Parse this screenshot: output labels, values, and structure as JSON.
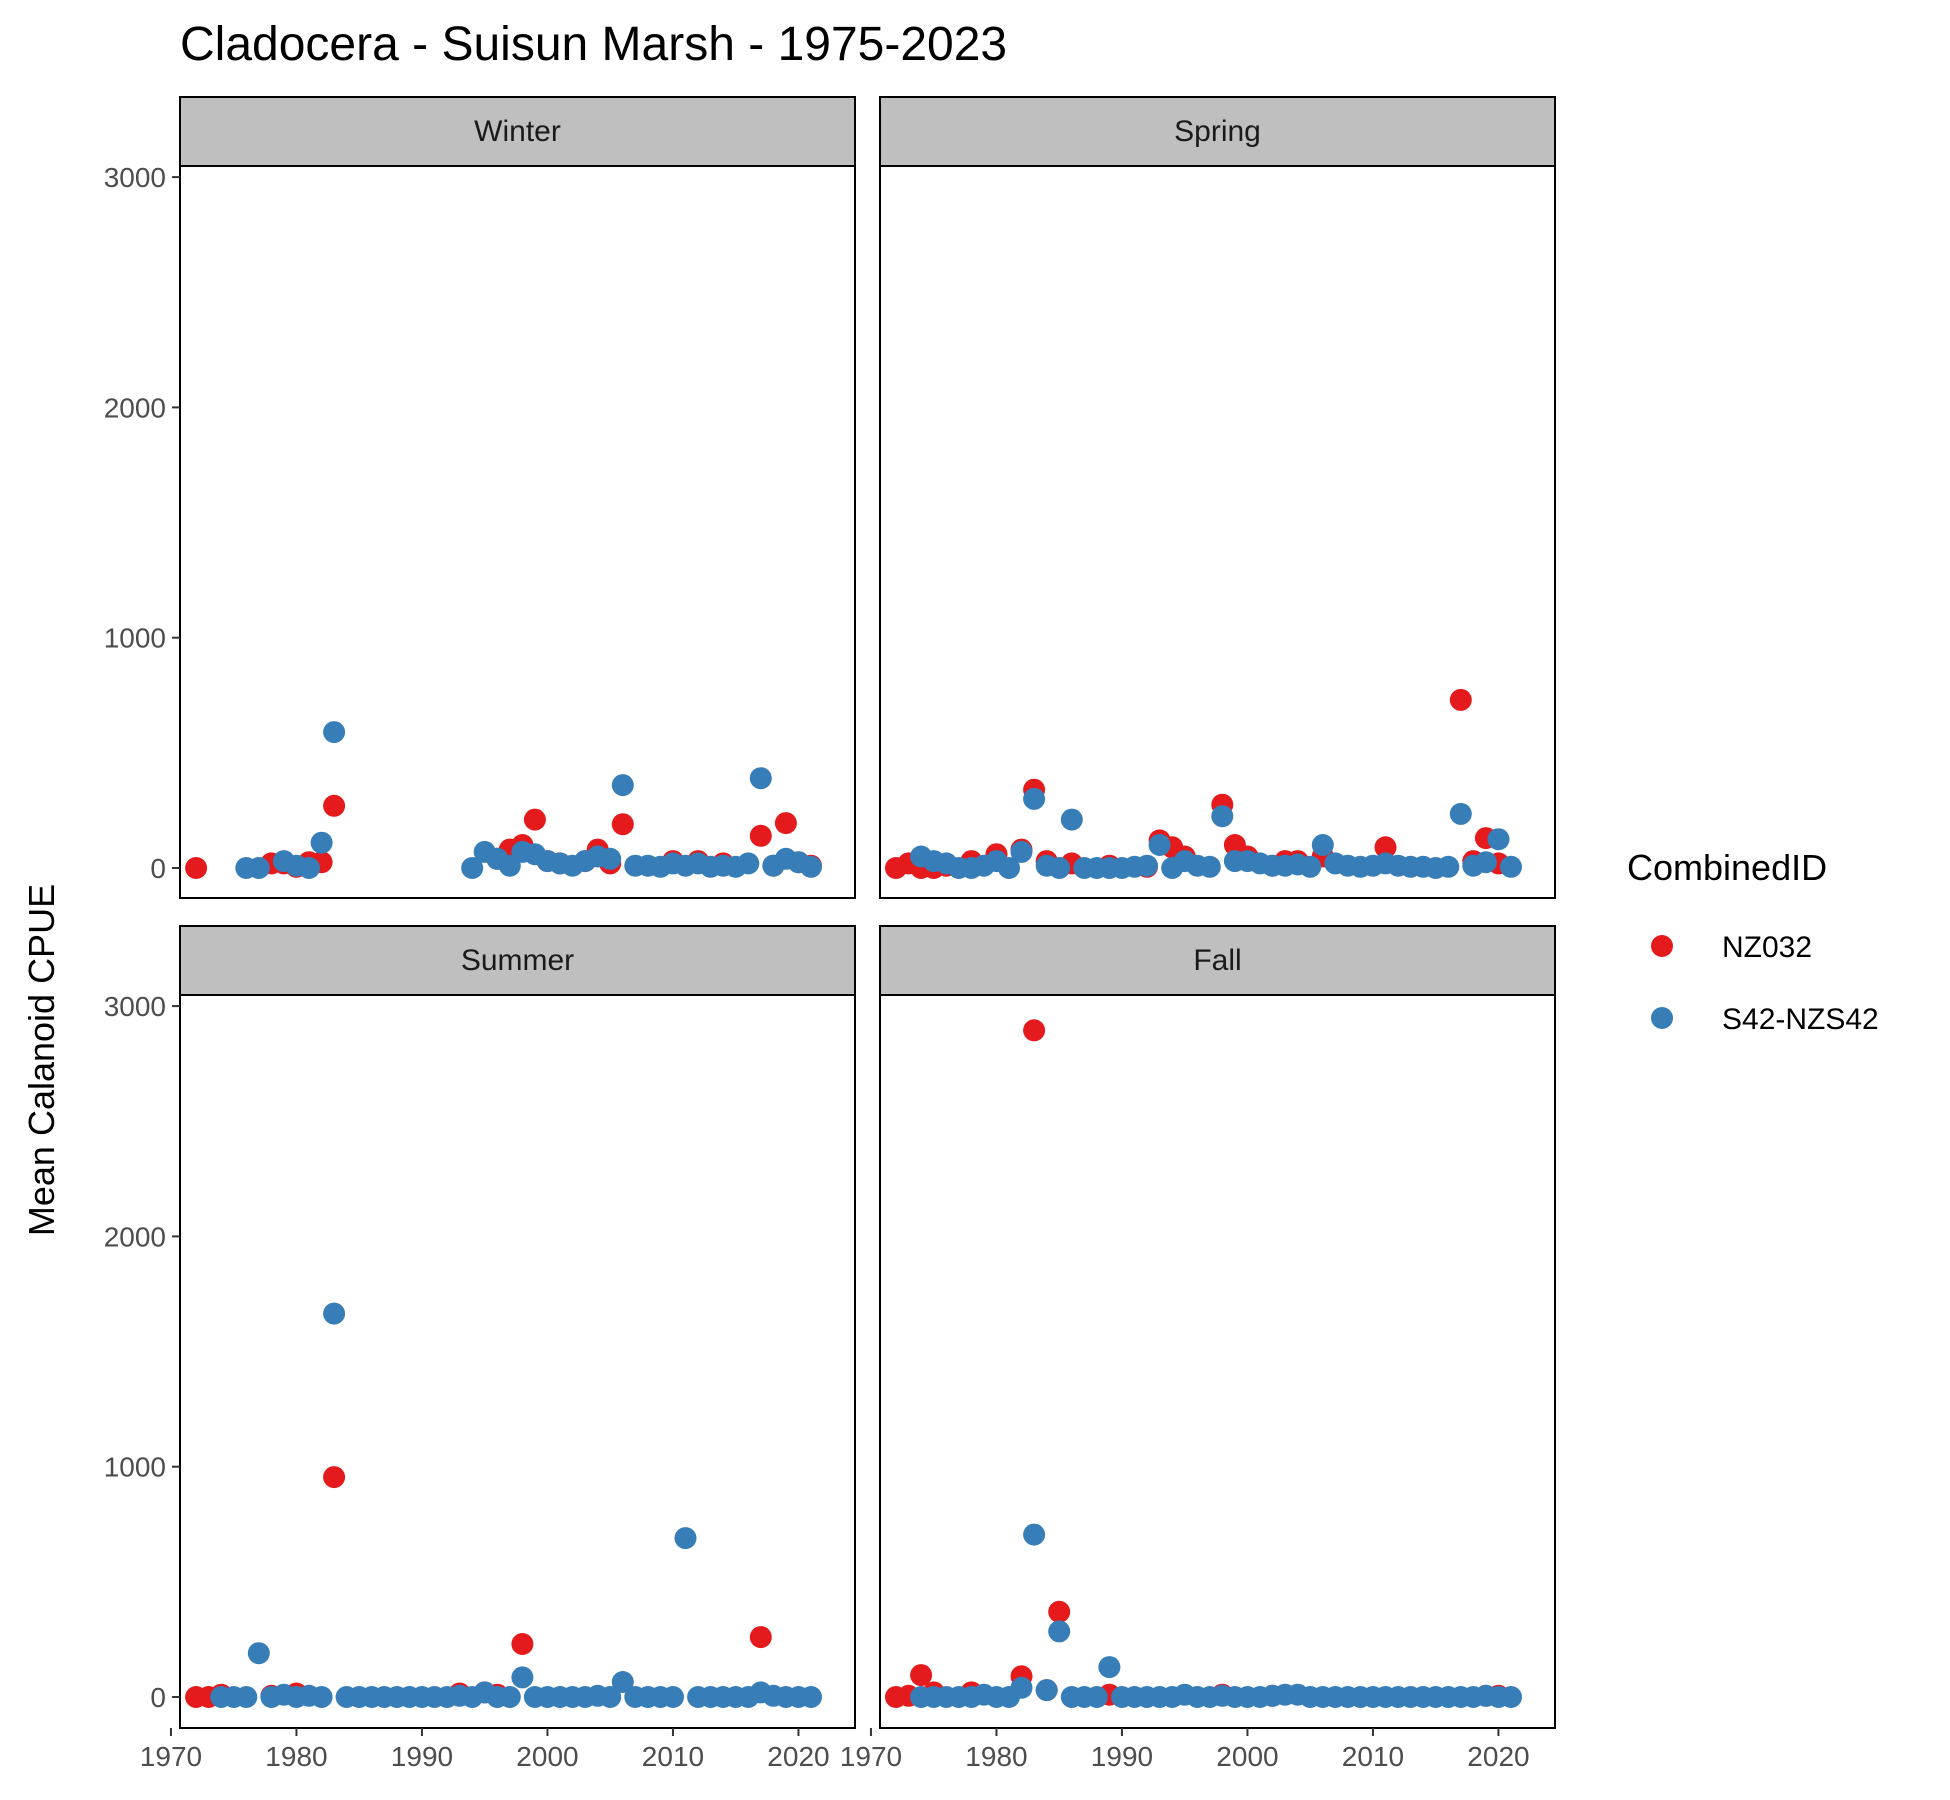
{
  "chart_data": {
    "type": "scatter",
    "title": "Cladocera - Suisun Marsh - 1975-2023",
    "xlabel": "",
    "ylabel": "Mean Calanoid CPUE",
    "facets": [
      "Winter",
      "Spring",
      "Summer",
      "Fall"
    ],
    "xlim": [
      1971,
      2022
    ],
    "ylim": [
      -100,
      3050
    ],
    "x_ticks": [
      1970,
      1980,
      1990,
      2000,
      2010,
      2020
    ],
    "y_ticks": [
      0,
      1000,
      2000,
      3000
    ],
    "grid": false,
    "legend": {
      "title": "CombinedID",
      "position": "right",
      "entries": [
        "NZ032",
        "S42-NZS42"
      ]
    },
    "colors": {
      "NZ032": "#e41a1c",
      "S42-NZS42": "#377eb8"
    },
    "panels": [
      {
        "facet": "Winter",
        "series": [
          {
            "name": "NZ032",
            "x": [
              1972,
              1978,
              1979,
              1980,
              1981,
              1982,
              1983,
              1996,
              1997,
              1998,
              1999,
              2000,
              2001,
              2003,
              2004,
              2005,
              2006,
              2010,
              2012,
              2014,
              2017,
              2018,
              2019,
              2020,
              2021
            ],
            "y": [
              0,
              20,
              20,
              5,
              25,
              25,
              270,
              40,
              80,
              100,
              210,
              30,
              20,
              30,
              80,
              20,
              190,
              30,
              30,
              20,
              140,
              10,
              195,
              25,
              10
            ]
          },
          {
            "name": "S42-NZS42",
            "x": [
              1976,
              1977,
              1979,
              1980,
              1981,
              1982,
              1983,
              1994,
              1995,
              1996,
              1997,
              1998,
              1999,
              2000,
              2001,
              2002,
              2003,
              2004,
              2005,
              2006,
              2007,
              2008,
              2009,
              2010,
              2011,
              2012,
              2013,
              2014,
              2015,
              2016,
              2017,
              2018,
              2019,
              2020,
              2021
            ],
            "y": [
              0,
              0,
              30,
              10,
              0,
              110,
              590,
              0,
              70,
              40,
              10,
              70,
              60,
              30,
              20,
              10,
              30,
              50,
              40,
              360,
              10,
              10,
              5,
              20,
              10,
              20,
              5,
              10,
              5,
              20,
              390,
              10,
              40,
              25,
              5
            ]
          }
        ]
      },
      {
        "facet": "Spring",
        "series": [
          {
            "name": "NZ032",
            "x": [
              1972,
              1973,
              1974,
              1975,
              1976,
              1978,
              1980,
              1982,
              1983,
              1984,
              1986,
              1989,
              1992,
              1993,
              1994,
              1995,
              1998,
              1999,
              2000,
              2002,
              2003,
              2004,
              2006,
              2011,
              2017,
              2018,
              2019,
              2020
            ],
            "y": [
              0,
              20,
              0,
              0,
              10,
              30,
              60,
              80,
              340,
              30,
              20,
              10,
              5,
              120,
              90,
              50,
              275,
              100,
              50,
              10,
              30,
              30,
              50,
              90,
              730,
              30,
              130,
              20
            ]
          },
          {
            "name": "S42-NZS42",
            "x": [
              1974,
              1975,
              1976,
              1977,
              1978,
              1979,
              1980,
              1981,
              1982,
              1983,
              1984,
              1985,
              1986,
              1987,
              1988,
              1989,
              1990,
              1991,
              1992,
              1993,
              1994,
              1995,
              1996,
              1997,
              1998,
              1999,
              2000,
              2001,
              2002,
              2003,
              2004,
              2005,
              2006,
              2007,
              2008,
              2009,
              2010,
              2011,
              2012,
              2013,
              2014,
              2015,
              2016,
              2017,
              2018,
              2019,
              2020,
              2021
            ],
            "y": [
              50,
              30,
              20,
              0,
              0,
              10,
              30,
              0,
              70,
              300,
              10,
              0,
              210,
              0,
              0,
              0,
              0,
              5,
              10,
              100,
              0,
              30,
              10,
              5,
              225,
              30,
              30,
              20,
              10,
              10,
              15,
              5,
              100,
              20,
              10,
              5,
              10,
              20,
              10,
              5,
              5,
              0,
              5,
              235,
              10,
              25,
              125,
              5
            ]
          }
        ]
      },
      {
        "facet": "Summer",
        "series": [
          {
            "name": "NZ032",
            "x": [
              1972,
              1973,
              1974,
              1978,
              1980,
              1983,
              1993,
              1995,
              1996,
              1998,
              2017
            ],
            "y": [
              0,
              0,
              10,
              5,
              15,
              955,
              15,
              20,
              10,
              230,
              260
            ]
          },
          {
            "name": "S42-NZS42",
            "x": [
              1974,
              1975,
              1976,
              1977,
              1978,
              1979,
              1980,
              1981,
              1982,
              1983,
              1984,
              1985,
              1986,
              1987,
              1988,
              1989,
              1990,
              1991,
              1992,
              1993,
              1994,
              1995,
              1996,
              1997,
              1998,
              1999,
              2000,
              2001,
              2002,
              2003,
              2004,
              2005,
              2006,
              2007,
              2008,
              2009,
              2010,
              2011,
              2012,
              2013,
              2014,
              2015,
              2016,
              2017,
              2018,
              2019,
              2020,
              2021
            ],
            "y": [
              0,
              0,
              0,
              190,
              0,
              10,
              0,
              5,
              0,
              1665,
              0,
              0,
              0,
              0,
              0,
              0,
              0,
              0,
              0,
              5,
              0,
              20,
              0,
              0,
              85,
              0,
              0,
              0,
              0,
              0,
              5,
              0,
              65,
              0,
              0,
              0,
              0,
              690,
              0,
              0,
              0,
              0,
              0,
              20,
              5,
              0,
              0,
              0
            ]
          }
        ]
      },
      {
        "facet": "Fall",
        "series": [
          {
            "name": "NZ032",
            "x": [
              1972,
              1973,
              1974,
              1975,
              1978,
              1982,
              1983,
              1984,
              1985,
              1989,
              1998,
              2002,
              2019,
              2020
            ],
            "y": [
              0,
              5,
              95,
              20,
              20,
              90,
              2895,
              30,
              370,
              10,
              10,
              5,
              5,
              5
            ]
          },
          {
            "name": "S42-NZS42",
            "x": [
              1974,
              1975,
              1976,
              1977,
              1978,
              1979,
              1980,
              1981,
              1982,
              1983,
              1984,
              1985,
              1986,
              1987,
              1988,
              1989,
              1990,
              1991,
              1992,
              1993,
              1994,
              1995,
              1996,
              1997,
              1998,
              1999,
              2000,
              2001,
              2002,
              2003,
              2004,
              2005,
              2006,
              2007,
              2008,
              2009,
              2010,
              2011,
              2012,
              2013,
              2014,
              2015,
              2016,
              2017,
              2018,
              2019,
              2020,
              2021
            ],
            "y": [
              0,
              0,
              0,
              0,
              0,
              10,
              0,
              0,
              40,
              705,
              30,
              285,
              0,
              0,
              0,
              130,
              0,
              0,
              0,
              0,
              0,
              10,
              0,
              0,
              5,
              0,
              0,
              0,
              5,
              10,
              10,
              0,
              0,
              0,
              0,
              0,
              0,
              0,
              0,
              0,
              0,
              0,
              0,
              0,
              0,
              5,
              0,
              0
            ]
          }
        ]
      }
    ]
  }
}
